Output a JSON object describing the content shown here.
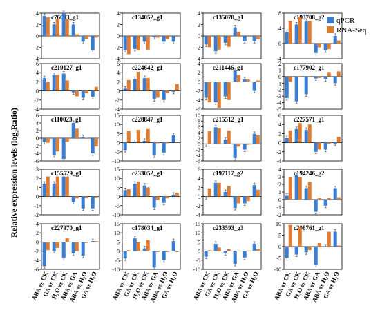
{
  "figure": {
    "ylabel": "Relative expression  levels (log₂Ratio)",
    "legend": [
      {
        "name": "qPCR",
        "color": "#3a7dd0"
      },
      {
        "name": "RNA-Seq",
        "color": "#e07b32"
      }
    ],
    "categories": [
      "ABA vs CK",
      "GA vs CK",
      "H₂O vs CK",
      "ABA vs GA",
      "ABA vs H₂O",
      "GA vs H₂O"
    ]
  },
  "chart_data": [
    {
      "type": "bar",
      "title": "c76033_g1",
      "ylim": [
        -4,
        4
      ],
      "ticks": [
        -4,
        -2,
        0,
        2,
        4
      ],
      "categories": [
        "ABA vs CK",
        "GA vs CK",
        "H2O vs CK",
        "ABA vs GA",
        "ABA vs H2O",
        "GA vs H2O"
      ],
      "series": [
        {
          "name": "qPCR",
          "values": [
            3.5,
            2.0,
            4.0,
            2.0,
            -1.0,
            -2.5
          ]
        },
        {
          "name": "RNA-Seq",
          "values": [
            3.3,
            3.0,
            3.0,
            0.3,
            -0.5,
            -0.3
          ]
        }
      ]
    },
    {
      "type": "bar",
      "title": "c134052_g1",
      "ylim": [
        -4,
        4
      ],
      "ticks": [
        -4,
        -2,
        0,
        2,
        4
      ],
      "categories": [
        "ABA vs CK",
        "GA vs CK",
        "H2O vs CK",
        "ABA vs GA",
        "ABA vs H2O",
        "GA vs H2O"
      ],
      "series": [
        {
          "name": "qPCR",
          "values": [
            -2.5,
            -2.3,
            -1.0,
            -0.2,
            -1.0,
            -1.0
          ]
        },
        {
          "name": "RNA-Seq",
          "values": [
            -3.2,
            -2.5,
            -2.4,
            -0.3,
            -0.6,
            -0.1
          ]
        }
      ]
    },
    {
      "type": "bar",
      "title": "c135078_g1",
      "ylim": [
        -4,
        4
      ],
      "ticks": [
        -4,
        -2,
        0,
        2,
        4
      ],
      "categories": [
        "ABA vs CK",
        "GA vs CK",
        "H2O vs CK",
        "ABA vs GA",
        "ABA vs H2O",
        "GA vs H2O"
      ],
      "series": [
        {
          "name": "qPCR",
          "values": [
            -1.5,
            -2.7,
            -1.2,
            1.5,
            -0.9,
            -0.9
          ]
        },
        {
          "name": "RNA-Seq",
          "values": [
            -2.0,
            -2.4,
            -1.9,
            0.7,
            -0.1,
            -0.5
          ]
        }
      ]
    },
    {
      "type": "bar",
      "title": "c193708_g2",
      "ylim": [
        -4,
        8
      ],
      "ticks": [
        -4,
        0,
        4,
        8
      ],
      "categories": [
        "ABA vs CK",
        "GA vs CK",
        "H2O vs CK",
        "ABA vs GA",
        "ABA vs H2O",
        "GA vs H2O"
      ],
      "series": [
        {
          "name": "qPCR",
          "values": [
            3.0,
            5.0,
            6.0,
            -2.5,
            -1.8,
            2.0
          ]
        },
        {
          "name": "RNA-Seq",
          "values": [
            6.0,
            7.0,
            6.0,
            -1.0,
            -1.5,
            0.8
          ]
        }
      ]
    },
    {
      "type": "bar",
      "title": "c219127_g1",
      "ylim": [
        -4,
        6
      ],
      "ticks": [
        -4,
        -2,
        0,
        2,
        4,
        6
      ],
      "categories": [
        "ABA vs CK",
        "GA vs CK",
        "H2O vs CK",
        "ABA vs GA",
        "ABA vs H2O",
        "GA vs H2O"
      ],
      "series": [
        {
          "name": "qPCR",
          "values": [
            2.8,
            3.5,
            3.8,
            -0.3,
            -1.5,
            -1.3
          ]
        },
        {
          "name": "RNA-Seq",
          "values": [
            2.0,
            3.5,
            2.3,
            -1.2,
            -0.5,
            0.9
          ]
        }
      ]
    },
    {
      "type": "bar",
      "title": "c224642_g1",
      "ylim": [
        -4,
        6
      ],
      "ticks": [
        -4,
        -2,
        0,
        2,
        4,
        6
      ],
      "categories": [
        "ABA vs CK",
        "GA vs CK",
        "H2O vs CK",
        "ABA vs GA",
        "ABA vs H2O",
        "GA vs H2O"
      ],
      "series": [
        {
          "name": "qPCR",
          "values": [
            0.5,
            2.6,
            2.8,
            -1.8,
            -2.0,
            -0.2
          ]
        },
        {
          "name": "RNA-Seq",
          "values": [
            2.4,
            4.2,
            2.8,
            -1.5,
            -0.5,
            1.5
          ]
        }
      ]
    },
    {
      "type": "bar",
      "title": "c211446_g1",
      "ylim": [
        -6,
        4
      ],
      "ticks": [
        -6,
        -4,
        -2,
        0,
        2,
        4
      ],
      "categories": [
        "ABA vs CK",
        "GA vs CK",
        "H2O vs CK",
        "ABA vs GA",
        "ABA vs H2O",
        "GA vs H2O"
      ],
      "series": [
        {
          "name": "qPCR",
          "values": [
            -3.5,
            -4.5,
            -3.2,
            2.5,
            0.5,
            -2.0
          ]
        },
        {
          "name": "RNA-Seq",
          "values": [
            -4.5,
            -5.7,
            -4.0,
            1.5,
            0.5,
            0.3
          ]
        }
      ]
    },
    {
      "type": "bar",
      "title": "c177902_g1",
      "ylim": [
        -5,
        2
      ],
      "ticks": [
        -5,
        -4,
        -3,
        -2,
        -1,
        0,
        1,
        2
      ],
      "categories": [
        "ABA vs CK",
        "GA vs CK",
        "H2O vs CK",
        "ABA vs GA",
        "ABA vs H2O",
        "GA vs H2O"
      ],
      "series": [
        {
          "name": "qPCR",
          "values": [
            -3.3,
            -3.8,
            -2.7,
            -0.3,
            -0.4,
            -1.0
          ]
        },
        {
          "name": "RNA-Seq",
          "values": [
            -0.8,
            -0.1,
            -0.1,
            -0.2,
            0.7,
            0.8
          ]
        }
      ]
    },
    {
      "type": "bar",
      "title": "c110023_g1",
      "ylim": [
        -6,
        6
      ],
      "ticks": [
        -6,
        -4,
        -2,
        0,
        2,
        4,
        6
      ],
      "categories": [
        "ABA vs CK",
        "GA vs CK",
        "H2O vs CK",
        "ABA vs GA",
        "ABA vs H2O",
        "GA vs H2O"
      ],
      "series": [
        {
          "name": "qPCR",
          "values": [
            -1.0,
            -4.5,
            -5.5,
            4.0,
            0.3,
            -4.0
          ]
        },
        {
          "name": "RNA-Seq",
          "values": [
            -1.2,
            -3.5,
            -1.0,
            2.5,
            0.1,
            -2.2
          ]
        }
      ]
    },
    {
      "type": "bar",
      "title": "c228847_g1",
      "ylim": [
        -10,
        15
      ],
      "ticks": [
        -10,
        -5,
        0,
        5,
        10,
        15
      ],
      "categories": [
        "ABA vs CK",
        "GA vs CK",
        "H2O vs CK",
        "ABA vs GA",
        "ABA vs H2O",
        "GA vs H2O"
      ],
      "series": [
        {
          "name": "qPCR",
          "values": [
            -4.0,
            0.5,
            1.0,
            -7.0,
            -5.5,
            4.0
          ]
        },
        {
          "name": "RNA-Seq",
          "values": [
            6.5,
            7.0,
            7.5,
            -0.3,
            -0.3,
            0.3
          ]
        }
      ]
    },
    {
      "type": "bar",
      "title": "c215512_g1",
      "ylim": [
        -6,
        10
      ],
      "ticks": [
        -6,
        -4,
        -2,
        0,
        2,
        4,
        6,
        8,
        10
      ],
      "categories": [
        "ABA vs CK",
        "GA vs CK",
        "H2O vs CK",
        "ABA vs GA",
        "ABA vs H2O",
        "GA vs H2O"
      ],
      "series": [
        {
          "name": "qPCR",
          "values": [
            -0.2,
            5.8,
            1.5,
            -5.0,
            -2.0,
            3.5
          ]
        },
        {
          "name": "RNA-Seq",
          "values": [
            4.5,
            5.5,
            4.7,
            -1.0,
            -0.3,
            3.0
          ]
        }
      ]
    },
    {
      "type": "bar",
      "title": "c227571_g1",
      "ylim": [
        -4,
        6
      ],
      "ticks": [
        -4,
        -2,
        0,
        2,
        4,
        6
      ],
      "categories": [
        "ABA vs CK",
        "GA vs CK",
        "H2O vs CK",
        "ABA vs GA",
        "ABA vs H2O",
        "GA vs H2O"
      ],
      "series": [
        {
          "name": "qPCR",
          "values": [
            1.0,
            3.0,
            2.8,
            -2.0,
            -1.5,
            -0.2
          ]
        },
        {
          "name": "RNA-Seq",
          "values": [
            2.7,
            4.3,
            4.0,
            -1.5,
            -0.2,
            1.3
          ]
        }
      ]
    },
    {
      "type": "bar",
      "title": "c155529_g1",
      "ylim": [
        -2,
        3
      ],
      "ticks": [
        -2,
        -1,
        0,
        1,
        2,
        3
      ],
      "categories": [
        "ABA vs CK",
        "GA vs CK",
        "H2O vs CK",
        "ABA vs GA",
        "ABA vs H2O",
        "GA vs H2O"
      ],
      "series": [
        {
          "name": "qPCR",
          "values": [
            1.4,
            1.4,
            2.2,
            -0.6,
            -1.3,
            -1.3
          ]
        },
        {
          "name": "RNA-Seq",
          "values": [
            2.2,
            2.2,
            2.2,
            -0.2,
            -0.1,
            -0.1
          ]
        }
      ]
    },
    {
      "type": "bar",
      "title": "c233052_g1",
      "ylim": [
        -10,
        15
      ],
      "ticks": [
        -10,
        -5,
        0,
        5,
        10,
        15
      ],
      "categories": [
        "ABA vs CK",
        "GA vs CK",
        "H2O vs CK",
        "ABA vs GA",
        "ABA vs H2O",
        "GA vs H2O"
      ],
      "series": [
        {
          "name": "qPCR",
          "values": [
            3.5,
            7.0,
            6.0,
            -6.0,
            -3.5,
            1.0
          ]
        },
        {
          "name": "RNA-Seq",
          "values": [
            4.0,
            8.0,
            5.0,
            -2.0,
            -1.0,
            2.0
          ]
        }
      ]
    },
    {
      "type": "bar",
      "title": "c197117_g2",
      "ylim": [
        -4,
        6
      ],
      "ticks": [
        -4,
        -2,
        0,
        2,
        4,
        6
      ],
      "categories": [
        "ABA vs CK",
        "GA vs CK",
        "H2O vs CK",
        "ABA vs GA",
        "ABA vs H2O",
        "GA vs H2O"
      ],
      "series": [
        {
          "name": "qPCR",
          "values": [
            -0.1,
            3.0,
            1.0,
            -2.5,
            -1.5,
            2.5
          ]
        },
        {
          "name": "RNA-Seq",
          "values": [
            1.8,
            3.0,
            2.3,
            -1.5,
            -1.0,
            1.5
          ]
        }
      ]
    },
    {
      "type": "bar",
      "title": "c194246_g2",
      "ylim": [
        -2,
        4
      ],
      "ticks": [
        -2,
        -1,
        0,
        1,
        2,
        3,
        4
      ],
      "categories": [
        "ABA vs CK",
        "GA vs CK",
        "H2O vs CK",
        "ABA vs GA",
        "ABA vs H2O",
        "GA vs H2O"
      ],
      "series": [
        {
          "name": "qPCR",
          "values": [
            0.5,
            3.2,
            1.5,
            -1.6,
            -0.8,
            1.5
          ]
        },
        {
          "name": "RNA-Seq",
          "values": [
            3.0,
            3.0,
            2.3,
            0.2,
            0.2,
            0.3
          ]
        }
      ]
    },
    {
      "type": "bar",
      "title": "c227970_g1",
      "ylim": [
        -6,
        4
      ],
      "ticks": [
        -6,
        -4,
        -2,
        0,
        2,
        4
      ],
      "categories": [
        "ABA vs CK",
        "GA vs CK",
        "H2O vs CK",
        "ABA vs GA",
        "ABA vs H2O",
        "GA vs H2O"
      ],
      "series": [
        {
          "name": "qPCR",
          "values": [
            -5.3,
            -2.0,
            -3.5,
            -2.5,
            -3.0,
            0.2
          ]
        },
        {
          "name": "RNA-Seq",
          "values": [
            -1.8,
            -1.3,
            0.8,
            -2.0,
            -0.2,
            0.2
          ]
        }
      ]
    },
    {
      "type": "bar",
      "title": "c178034_g1",
      "ylim": [
        -10,
        15
      ],
      "ticks": [
        -10,
        -5,
        0,
        5,
        10,
        15
      ],
      "categories": [
        "ABA vs CK",
        "GA vs CK",
        "H2O vs CK",
        "ABA vs GA",
        "ABA vs H2O",
        "GA vs H2O"
      ],
      "series": [
        {
          "name": "qPCR",
          "values": [
            -4.0,
            7.0,
            1.5,
            -9.0,
            -5.0,
            5.5
          ]
        },
        {
          "name": "RNA-Seq",
          "values": [
            0.5,
            5.0,
            6.0,
            -0.5,
            -0.5,
            -0.5
          ]
        }
      ]
    },
    {
      "type": "bar",
      "title": "c233593_g3",
      "ylim": [
        -10,
        15
      ],
      "ticks": [
        -10,
        -5,
        0,
        5,
        10,
        15
      ],
      "categories": [
        "ABA vs CK",
        "GA vs CK",
        "H2O vs CK",
        "ABA vs GA",
        "ABA vs H2O",
        "GA vs H2O"
      ],
      "series": [
        {
          "name": "qPCR",
          "values": [
            -3.0,
            4.0,
            -1.0,
            -7.0,
            -3.5,
            4.0
          ]
        },
        {
          "name": "RNA-Seq",
          "values": [
            0.5,
            2.0,
            1.0,
            0.3,
            0.3,
            1.0
          ]
        }
      ]
    },
    {
      "type": "bar",
      "title": "c208761_g1",
      "ylim": [
        -10,
        10
      ],
      "ticks": [
        -10,
        -5,
        0,
        5,
        10
      ],
      "categories": [
        "ABA vs CK",
        "GA vs CK",
        "H2O vs CK",
        "ABA vs GA",
        "ABA vs H2O",
        "GA vs H2O"
      ],
      "series": [
        {
          "name": "qPCR",
          "values": [
            -5.0,
            -3.5,
            -2.5,
            -8.0,
            0.0,
            6.5
          ]
        },
        {
          "name": "RNA-Seq",
          "values": [
            9.5,
            8.5,
            -1.5,
            1.5,
            6.5,
            0.5
          ]
        }
      ]
    }
  ]
}
